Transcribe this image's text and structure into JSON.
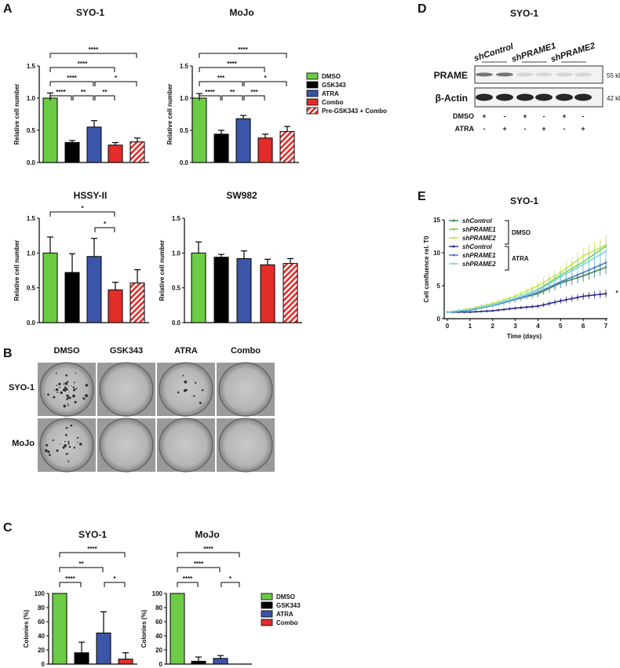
{
  "panel_labels": [
    "A",
    "B",
    "C",
    "D",
    "E"
  ],
  "colors": {
    "DMSO": "#6ccc45",
    "GSK343": "#000000",
    "ATRA": "#3b55a8",
    "Combo": "#e22d28",
    "Pre": "#e22d28"
  },
  "legend_A": [
    "DMSO",
    "GSK343",
    "ATRA",
    "Combo",
    "Pre-GSK343 + Combo"
  ],
  "legend_C": [
    "DMSO",
    "GSK343",
    "ATRA",
    "Combo"
  ],
  "chart_data": [
    {
      "type": "bar",
      "title": "SYO-1",
      "ylabel": "Relative cell number",
      "ylim": [
        0,
        1.5
      ],
      "yticks": [
        "0.0",
        "0.5",
        "1.0",
        "1.5"
      ],
      "categories": [
        "DMSO",
        "GSK343",
        "ATRA",
        "Combo",
        "Pre-GSK343 + Combo"
      ],
      "values": [
        1.0,
        0.31,
        0.55,
        0.27,
        0.32
      ],
      "errors": [
        0.08,
        0.03,
        0.1,
        0.04,
        0.06
      ],
      "sig": [
        [
          0,
          1,
          "****",
          0
        ],
        [
          1,
          2,
          "**",
          0
        ],
        [
          2,
          3,
          "**",
          0
        ],
        [
          0,
          2,
          "****",
          1
        ],
        [
          2,
          4,
          "*",
          1
        ],
        [
          0,
          3,
          "****",
          2
        ],
        [
          0,
          4,
          "****",
          3
        ]
      ]
    },
    {
      "type": "bar",
      "title": "MoJo",
      "ylabel": "Relative cell number",
      "ylim": [
        0,
        1.5
      ],
      "yticks": [
        "0.0",
        "0.5",
        "1.0",
        "1.5"
      ],
      "categories": [
        "DMSO",
        "GSK343",
        "ATRA",
        "Combo",
        "Pre-GSK343 + Combo"
      ],
      "values": [
        1.0,
        0.44,
        0.68,
        0.38,
        0.48
      ],
      "errors": [
        0.07,
        0.06,
        0.05,
        0.06,
        0.08
      ],
      "sig": [
        [
          0,
          1,
          "****",
          0
        ],
        [
          1,
          2,
          "**",
          0
        ],
        [
          2,
          3,
          "***",
          0
        ],
        [
          0,
          2,
          "***",
          1
        ],
        [
          2,
          4,
          "*",
          1
        ],
        [
          0,
          3,
          "****",
          2
        ],
        [
          0,
          4,
          "****",
          3
        ]
      ]
    },
    {
      "type": "bar",
      "title": "HSSY-II",
      "ylabel": "Relative cell number",
      "ylim": [
        0,
        1.5
      ],
      "yticks": [
        "0.0",
        "0.5",
        "1.0",
        "1.5"
      ],
      "categories": [
        "DMSO",
        "GSK343",
        "ATRA",
        "Combo",
        "Pre-GSK343 + Combo"
      ],
      "values": [
        1.0,
        0.72,
        0.95,
        0.47,
        0.57
      ],
      "errors": [
        0.23,
        0.27,
        0.26,
        0.11,
        0.19
      ],
      "sig": [
        [
          2,
          3,
          "*",
          0
        ],
        [
          0,
          3,
          "*",
          1
        ]
      ]
    },
    {
      "type": "bar",
      "title": "SW982",
      "ylabel": "Relative cell number",
      "ylim": [
        0,
        1.5
      ],
      "yticks": [
        "0.0",
        "0.5",
        "1.0",
        "1.5"
      ],
      "categories": [
        "DMSO",
        "GSK343",
        "ATRA",
        "Combo",
        "Pre-GSK343 + Combo"
      ],
      "values": [
        1.0,
        0.94,
        0.92,
        0.83,
        0.85
      ],
      "errors": [
        0.16,
        0.04,
        0.11,
        0.08,
        0.07
      ],
      "sig": []
    },
    {
      "type": "bar",
      "title": "SYO-1",
      "ylabel": "Colonies (%)",
      "ylim": [
        0,
        100
      ],
      "yticks": [
        "0",
        "20",
        "40",
        "60",
        "80",
        "100"
      ],
      "categories": [
        "DMSO",
        "GSK343",
        "ATRA",
        "Combo"
      ],
      "values": [
        100,
        16,
        44,
        7
      ],
      "errors": [
        0,
        15,
        30,
        9
      ],
      "sig": [
        [
          0,
          1,
          "****",
          0
        ],
        [
          2,
          3,
          "*",
          0
        ],
        [
          0,
          2,
          "**",
          1
        ],
        [
          0,
          3,
          "****",
          2
        ]
      ]
    },
    {
      "type": "bar",
      "title": "MoJo",
      "ylabel": "Colonies (%)",
      "ylim": [
        0,
        100
      ],
      "yticks": [
        "0",
        "20",
        "40",
        "60",
        "80",
        "100"
      ],
      "categories": [
        "DMSO",
        "GSK343",
        "ATRA",
        "Combo"
      ],
      "values": [
        100,
        4,
        8,
        0
      ],
      "errors": [
        0,
        6,
        4,
        0
      ],
      "sig": [
        [
          0,
          1,
          "****",
          0
        ],
        [
          2,
          3,
          "*",
          0
        ],
        [
          0,
          2,
          "****",
          1
        ],
        [
          0,
          3,
          "****",
          2
        ]
      ]
    },
    {
      "type": "line",
      "title": "SYO-1",
      "xlabel": "Time (days)",
      "ylabel": "Cell confluence rel. T0",
      "xlim": [
        0,
        7
      ],
      "ylim": [
        0,
        15
      ],
      "xticks": [
        "0",
        "1",
        "2",
        "3",
        "4",
        "5",
        "6",
        "7"
      ],
      "yticks": [
        "0",
        "5",
        "10",
        "15"
      ],
      "x": [
        0,
        1,
        2,
        3,
        4,
        5,
        6,
        7
      ],
      "groups": [
        "DMSO",
        "ATRA"
      ],
      "annotation": "*",
      "series": [
        {
          "name": "shControl",
          "group": "DMSO",
          "color": "#3d8c50",
          "values": [
            1,
            1.3,
            2.0,
            2.9,
            3.8,
            5.4,
            6.5,
            7.8
          ]
        },
        {
          "name": "shPRAME1",
          "group": "DMSO",
          "color": "#7ccf48",
          "values": [
            1,
            1.4,
            2.1,
            3.1,
            4.4,
            6.6,
            8.6,
            11.0
          ]
        },
        {
          "name": "shPRAME2",
          "group": "DMSO",
          "color": "#cde64c",
          "values": [
            1,
            1.5,
            2.3,
            3.4,
            5.0,
            7.0,
            9.5,
            11.2
          ]
        },
        {
          "name": "shControl",
          "group": "ATRA",
          "color": "#2c2f8c",
          "values": [
            1,
            1.0,
            1.2,
            1.6,
            1.9,
            2.7,
            3.4,
            3.8
          ]
        },
        {
          "name": "shPRAME1",
          "group": "ATRA",
          "color": "#4a7ec2",
          "values": [
            1,
            1.3,
            2.0,
            2.9,
            4.0,
            5.6,
            7.0,
            8.5
          ]
        },
        {
          "name": "shPRAME2",
          "group": "ATRA",
          "color": "#80d4ea",
          "values": [
            1,
            1.4,
            2.1,
            3.1,
            4.3,
            6.3,
            8.2,
            10.2
          ]
        }
      ]
    }
  ],
  "panel_B": {
    "columns": [
      "DMSO",
      "GSK343",
      "ATRA",
      "Combo"
    ],
    "rows": [
      "SYO-1",
      "MoJo"
    ]
  },
  "panel_D": {
    "title": "SYO-1",
    "groups": [
      "shControl",
      "shPRAME1",
      "shPRAME2"
    ],
    "bands": [
      "PRAME",
      "β-Actin"
    ],
    "sizes": [
      "55 kDa",
      "42 kDa"
    ],
    "rows": [
      {
        "label": "DMSO",
        "values": [
          "+",
          "-",
          "+",
          "-",
          "+",
          "-"
        ]
      },
      {
        "label": "ATRA",
        "values": [
          "-",
          "+",
          "-",
          "+",
          "-",
          "+"
        ]
      }
    ]
  }
}
